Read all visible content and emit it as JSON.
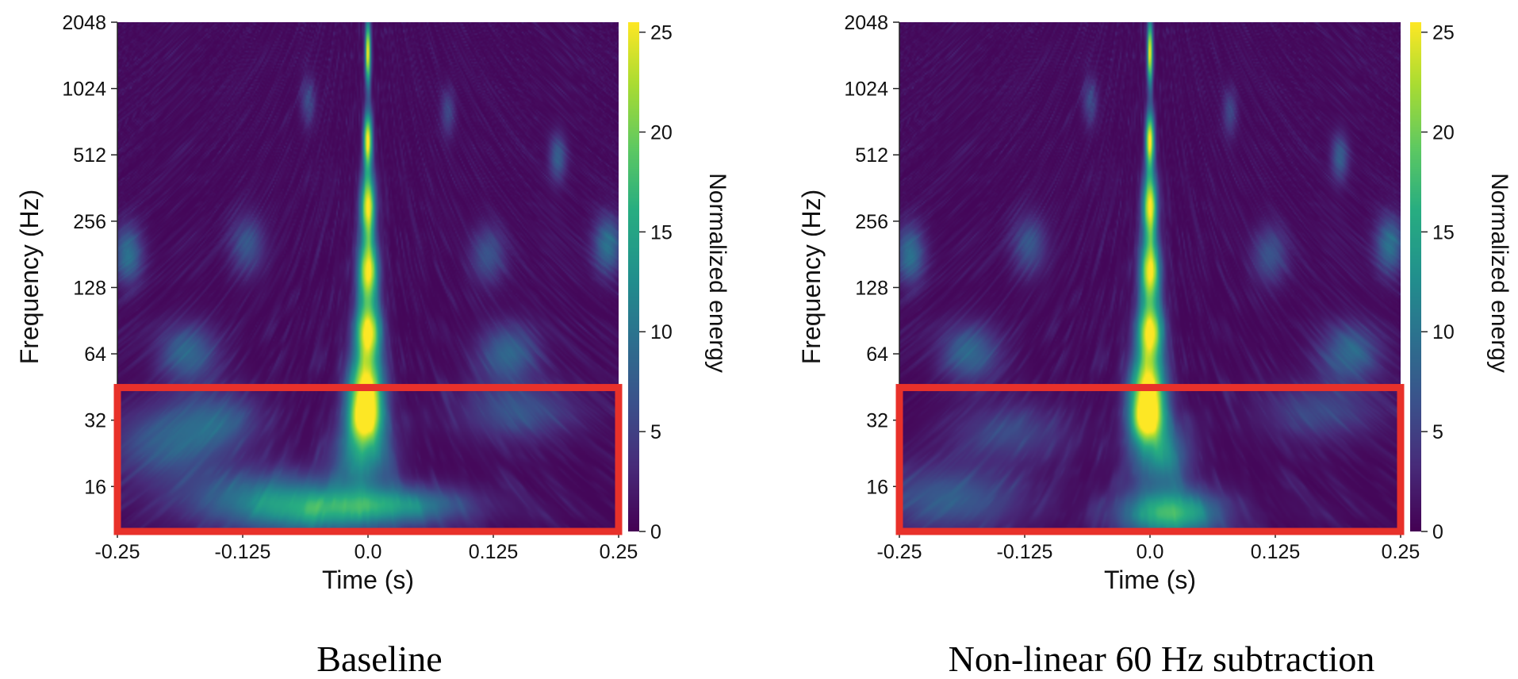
{
  "chart_data": [
    {
      "type": "heatmap",
      "caption": "Baseline",
      "xlabel": "Time (s)",
      "ylabel": "Frequency (Hz)",
      "colorbar_label": "Normalized energy",
      "xlim": [
        -0.25,
        0.25
      ],
      "x_ticks": [
        "-0.25",
        "-0.125",
        "0.0",
        "0.125",
        "0.25"
      ],
      "y_scale": "log2",
      "ylim": [
        10,
        2048
      ],
      "y_ticks": [
        "2048",
        "1024",
        "512",
        "256",
        "128",
        "64",
        "32",
        "16"
      ],
      "colorbar_range": [
        0,
        25.5
      ],
      "colorbar_ticks": [
        "0",
        "5",
        "10",
        "15",
        "20",
        "25"
      ],
      "highlight_region": {
        "time": [
          -0.25,
          0.25
        ],
        "frequency": [
          10,
          45
        ],
        "color": "#e8312a"
      },
      "features": [
        {
          "time": 0.0,
          "freq": 1500,
          "energy": 25,
          "ft": 0.002,
          "lf": 0.35
        },
        {
          "time": 0.0,
          "freq": 600,
          "energy": 25,
          "ft": 0.003,
          "lf": 0.3
        },
        {
          "time": 0.0,
          "freq": 300,
          "energy": 25,
          "ft": 0.005,
          "lf": 0.35
        },
        {
          "time": 0.0,
          "freq": 150,
          "energy": 25,
          "ft": 0.007,
          "lf": 0.35
        },
        {
          "time": 0.0,
          "freq": 80,
          "energy": 25,
          "ft": 0.009,
          "lf": 0.3
        },
        {
          "time": -0.002,
          "freq": 45,
          "energy": 25,
          "ft": 0.012,
          "lf": 0.35
        },
        {
          "time": -0.003,
          "freq": 32,
          "energy": 19,
          "ft": 0.012,
          "lf": 0.25
        },
        {
          "time": -0.005,
          "freq": 22,
          "energy": 12,
          "ft": 0.02,
          "lf": 0.35
        },
        {
          "time": 0.03,
          "freq": 13,
          "energy": 11,
          "ft": 0.05,
          "lf": 0.2
        },
        {
          "time": -0.1,
          "freq": 14,
          "energy": 9,
          "ft": 0.06,
          "lf": 0.3
        },
        {
          "time": -0.05,
          "freq": 12,
          "energy": 8,
          "ft": 0.05,
          "lf": 0.25
        },
        {
          "time": -0.2,
          "freq": 25,
          "energy": 7,
          "ft": 0.04,
          "lf": 0.4
        },
        {
          "time": -0.15,
          "freq": 32,
          "energy": 6,
          "ft": 0.03,
          "lf": 0.3
        },
        {
          "time": 0.15,
          "freq": 35,
          "energy": 6,
          "ft": 0.04,
          "lf": 0.3
        },
        {
          "time": -0.18,
          "freq": 64,
          "energy": 8,
          "ft": 0.02,
          "lf": 0.3
        },
        {
          "time": 0.14,
          "freq": 64,
          "energy": 8,
          "ft": 0.02,
          "lf": 0.3
        },
        {
          "time": -0.24,
          "freq": 180,
          "energy": 9,
          "ft": 0.01,
          "lf": 0.3
        },
        {
          "time": 0.24,
          "freq": 200,
          "energy": 9,
          "ft": 0.01,
          "lf": 0.3
        },
        {
          "time": 0.12,
          "freq": 180,
          "energy": 6,
          "ft": 0.012,
          "lf": 0.3
        },
        {
          "time": -0.12,
          "freq": 200,
          "energy": 6,
          "ft": 0.012,
          "lf": 0.3
        },
        {
          "time": 0.19,
          "freq": 500,
          "energy": 7,
          "ft": 0.006,
          "lf": 0.25
        },
        {
          "time": -0.06,
          "freq": 900,
          "energy": 5,
          "ft": 0.005,
          "lf": 0.25
        },
        {
          "time": 0.08,
          "freq": 800,
          "energy": 5,
          "ft": 0.005,
          "lf": 0.25
        }
      ]
    },
    {
      "type": "heatmap",
      "caption": "Non-linear 60 Hz subtraction",
      "xlabel": "Time (s)",
      "ylabel": "Frequency (Hz)",
      "colorbar_label": "Normalized energy",
      "xlim": [
        -0.25,
        0.25
      ],
      "x_ticks": [
        "-0.25",
        "-0.125",
        "0.0",
        "0.125",
        "0.25"
      ],
      "y_scale": "log2",
      "ylim": [
        10,
        2048
      ],
      "y_ticks": [
        "2048",
        "1024",
        "512",
        "256",
        "128",
        "64",
        "32",
        "16"
      ],
      "colorbar_range": [
        0,
        25.5
      ],
      "colorbar_ticks": [
        "0",
        "5",
        "10",
        "15",
        "20",
        "25"
      ],
      "highlight_region": {
        "time": [
          -0.25,
          0.25
        ],
        "frequency": [
          10,
          45
        ],
        "color": "#e8312a"
      },
      "features": [
        {
          "time": 0.0,
          "freq": 1500,
          "energy": 25,
          "ft": 0.002,
          "lf": 0.35
        },
        {
          "time": 0.0,
          "freq": 600,
          "energy": 25,
          "ft": 0.003,
          "lf": 0.3
        },
        {
          "time": 0.0,
          "freq": 300,
          "energy": 25,
          "ft": 0.005,
          "lf": 0.35
        },
        {
          "time": 0.0,
          "freq": 150,
          "energy": 25,
          "ft": 0.007,
          "lf": 0.35
        },
        {
          "time": 0.0,
          "freq": 80,
          "energy": 25,
          "ft": 0.009,
          "lf": 0.3
        },
        {
          "time": -0.002,
          "freq": 45,
          "energy": 25,
          "ft": 0.012,
          "lf": 0.35
        },
        {
          "time": -0.003,
          "freq": 32,
          "energy": 20,
          "ft": 0.012,
          "lf": 0.25
        },
        {
          "time": 0.01,
          "freq": 22,
          "energy": 12,
          "ft": 0.02,
          "lf": 0.35
        },
        {
          "time": 0.02,
          "freq": 12,
          "energy": 17,
          "ft": 0.035,
          "lf": 0.25
        },
        {
          "time": -0.2,
          "freq": 14,
          "energy": 7,
          "ft": 0.05,
          "lf": 0.35
        },
        {
          "time": -0.14,
          "freq": 28,
          "energy": 5,
          "ft": 0.04,
          "lf": 0.3
        },
        {
          "time": 0.17,
          "freq": 35,
          "energy": 5,
          "ft": 0.04,
          "lf": 0.3
        },
        {
          "time": -0.18,
          "freq": 64,
          "energy": 8,
          "ft": 0.02,
          "lf": 0.3
        },
        {
          "time": 0.2,
          "freq": 64,
          "energy": 8,
          "ft": 0.02,
          "lf": 0.3
        },
        {
          "time": -0.24,
          "freq": 180,
          "energy": 9,
          "ft": 0.01,
          "lf": 0.3
        },
        {
          "time": 0.24,
          "freq": 200,
          "energy": 9,
          "ft": 0.01,
          "lf": 0.3
        },
        {
          "time": 0.12,
          "freq": 180,
          "energy": 6,
          "ft": 0.012,
          "lf": 0.3
        },
        {
          "time": -0.12,
          "freq": 200,
          "energy": 6,
          "ft": 0.012,
          "lf": 0.3
        },
        {
          "time": 0.19,
          "freq": 500,
          "energy": 7,
          "ft": 0.006,
          "lf": 0.25
        },
        {
          "time": -0.06,
          "freq": 900,
          "energy": 5,
          "ft": 0.005,
          "lf": 0.25
        },
        {
          "time": 0.08,
          "freq": 800,
          "energy": 5,
          "ft": 0.005,
          "lf": 0.25
        }
      ]
    }
  ]
}
